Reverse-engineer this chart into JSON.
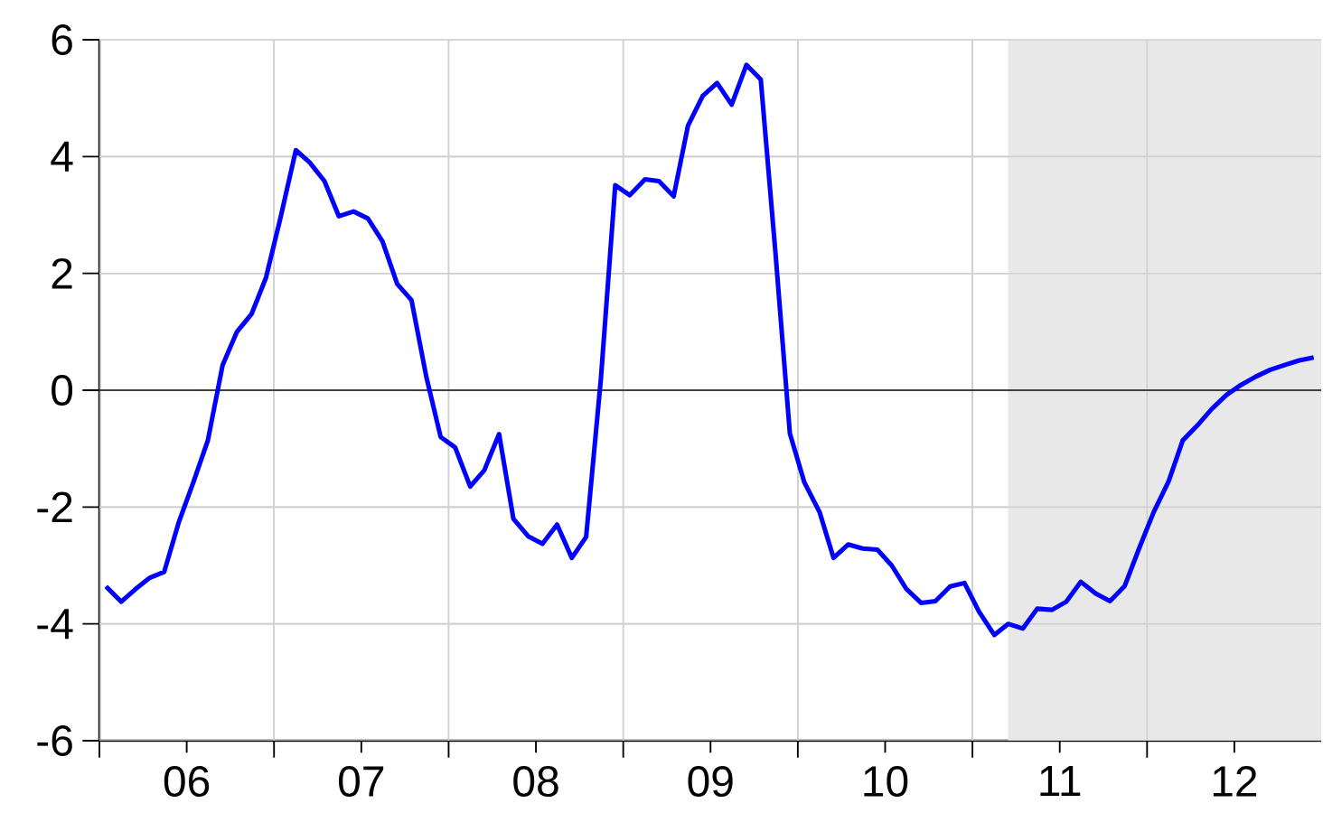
{
  "chart_data": {
    "type": "line",
    "x": [
      "2006-01-15",
      "2006-02-15",
      "2006-03-15",
      "2006-04-15",
      "2006-05-15",
      "2006-06-15",
      "2006-07-15",
      "2006-08-15",
      "2006-09-15",
      "2006-10-15",
      "2006-11-15",
      "2006-12-15",
      "2007-01-15",
      "2007-02-15",
      "2007-03-15",
      "2007-04-15",
      "2007-05-15",
      "2007-06-15",
      "2007-07-15",
      "2007-08-15",
      "2007-09-15",
      "2007-10-15",
      "2007-11-15",
      "2007-12-15",
      "2008-01-15",
      "2008-02-15",
      "2008-03-15",
      "2008-04-15",
      "2008-05-15",
      "2008-06-15",
      "2008-07-15",
      "2008-08-15",
      "2008-09-15",
      "2008-10-15",
      "2008-11-15",
      "2008-12-15",
      "2009-01-15",
      "2009-02-15",
      "2009-03-15",
      "2009-04-15",
      "2009-05-15",
      "2009-06-15",
      "2009-07-15",
      "2009-08-15",
      "2009-09-15",
      "2009-10-15",
      "2009-11-15",
      "2009-12-15",
      "2010-01-15",
      "2010-02-15",
      "2010-03-15",
      "2010-04-15",
      "2010-05-15",
      "2010-06-15",
      "2010-07-15",
      "2010-08-15",
      "2010-09-15",
      "2010-10-15",
      "2010-11-15",
      "2010-12-15",
      "2011-01-15",
      "2011-02-15",
      "2011-03-15",
      "2011-04-15",
      "2011-05-15",
      "2011-06-15",
      "2011-07-15",
      "2011-08-15",
      "2011-09-15",
      "2011-10-15",
      "2011-11-15",
      "2011-12-15",
      "2012-01-15",
      "2012-02-15",
      "2012-03-15",
      "2012-04-15",
      "2012-05-15",
      "2012-06-15",
      "2012-07-15",
      "2012-08-15",
      "2012-09-15",
      "2012-10-15",
      "2012-11-15",
      "2012-12-15"
    ],
    "series": [
      {
        "color": "#0000ff",
        "values": [
          -3.36,
          -3.62,
          -3.41,
          -3.21,
          -3.11,
          -2.25,
          -1.58,
          -0.86,
          0.43,
          1.0,
          1.31,
          1.93,
          2.96,
          4.11,
          3.9,
          3.58,
          2.98,
          3.06,
          2.94,
          2.55,
          1.82,
          1.54,
          0.23,
          -0.8,
          -0.98,
          -1.65,
          -1.37,
          -0.75,
          -2.2,
          -2.5,
          -2.63,
          -2.3,
          -2.87,
          -2.51,
          0.2,
          3.51,
          3.34,
          3.61,
          3.58,
          3.32,
          4.53,
          5.04,
          5.26,
          4.89,
          5.57,
          5.32,
          2.34,
          -0.74,
          -1.58,
          -2.09,
          -2.87,
          -2.64,
          -2.71,
          -2.73,
          -3.0,
          -3.4,
          -3.64,
          -3.61,
          -3.36,
          -3.3,
          -3.79,
          -4.19,
          -4.0,
          -4.08,
          -3.74,
          -3.76,
          -3.62,
          -3.28,
          -3.48,
          -3.61,
          -3.35,
          -2.71,
          -2.09,
          -1.56,
          -0.86,
          -0.6,
          -0.32,
          -0.08,
          0.09,
          0.23,
          0.35,
          0.43,
          0.51,
          0.56
        ]
      }
    ],
    "xlim": [
      "2006-01-01",
      "2012-12-31"
    ],
    "xticks": [
      {
        "value": "2006-01-01",
        "label": null
      },
      {
        "value": "2006-07-01",
        "label": "06"
      },
      {
        "value": "2007-01-01",
        "label": null
      },
      {
        "value": "2007-07-01",
        "label": "07"
      },
      {
        "value": "2008-01-01",
        "label": null
      },
      {
        "value": "2008-07-01",
        "label": "08"
      },
      {
        "value": "2009-01-01",
        "label": null
      },
      {
        "value": "2009-07-01",
        "label": "09"
      },
      {
        "value": "2010-01-01",
        "label": null
      },
      {
        "value": "2010-07-01",
        "label": "10"
      },
      {
        "value": "2011-01-01",
        "label": null
      },
      {
        "value": "2011-07-01",
        "label": "11"
      },
      {
        "value": "2012-01-01",
        "label": null
      },
      {
        "value": "2012-07-01",
        "label": "12"
      }
    ],
    "ylim": [
      -6,
      6
    ],
    "yticks": [
      -6,
      -4,
      -2,
      0,
      2,
      4,
      6
    ],
    "grid": true,
    "marker": "none",
    "line_style": "solid",
    "ref_lines": [
      {
        "axis": "y",
        "value": 0,
        "color": "#404040"
      }
    ],
    "bands": [
      {
        "axis": "x",
        "from": "2011-03-15",
        "to": "2012-12-31",
        "color": "#e8e8e8"
      }
    ]
  }
}
